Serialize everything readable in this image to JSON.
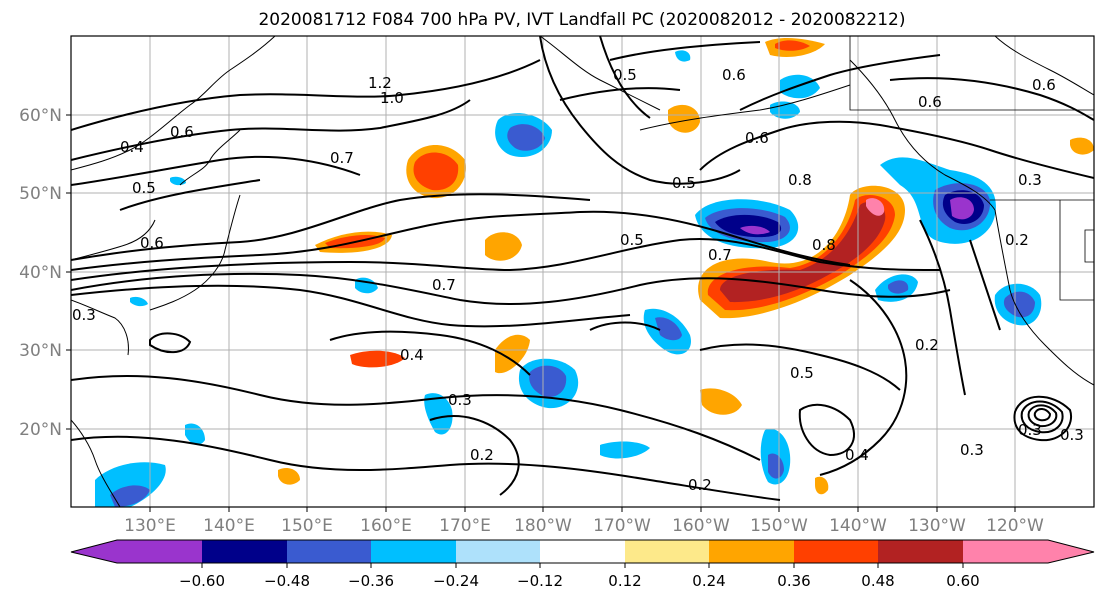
{
  "title": "2020081712 F084 700 hPa PV, IVT Landfall PC (2020082012 - 2020082212)",
  "lon_labels": [
    "130°E",
    "140°E",
    "150°E",
    "160°E",
    "170°E",
    "180°W",
    "170°W",
    "160°W",
    "150°W",
    "140°W",
    "130°W",
    "120°W"
  ],
  "lat_labels": [
    "60°N",
    "50°N",
    "40°N",
    "30°N",
    "20°N"
  ],
  "colorbar": {
    "colors": [
      "#9a34cd",
      "#00008a",
      "#3a5bd0",
      "#00bfff",
      "#aee1fb",
      "#ffffff",
      "#fde98a",
      "#ffa500",
      "#ff4000",
      "#b22222",
      "#ff82ab"
    ],
    "tick_labels": [
      "−0.60",
      "−0.48",
      "−0.36",
      "−0.24",
      "−0.12",
      "0.12",
      "0.24",
      "0.36",
      "0.48",
      "0.60"
    ]
  },
  "contour_labels": [
    "1.2",
    "1.0",
    "0.6",
    "0.4",
    "0.5",
    "0.7",
    "0.6",
    "0.3",
    "0.7",
    "0.4",
    "0.3",
    "0.2",
    "0.5",
    "0.6",
    "0.5",
    "0.6",
    "0.6",
    "0.6",
    "0.8",
    "0.7",
    "0.5",
    "0.2",
    "0.3",
    "0.2",
    "0.5",
    "0.4",
    "0.2",
    "0.3",
    "0.8",
    "0.3",
    "0.3"
  ]
}
